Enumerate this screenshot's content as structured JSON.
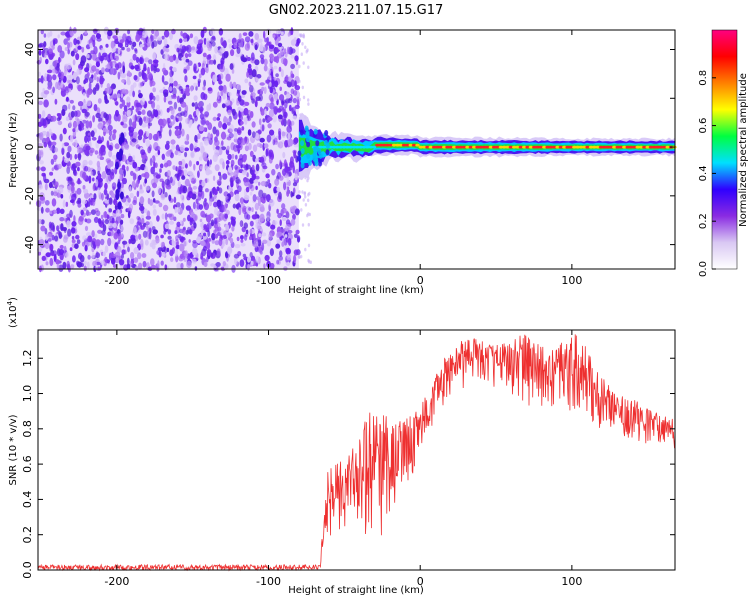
{
  "title": "GN02.2023.211.07.15.G17",
  "chart_data": [
    {
      "type": "heatmap",
      "name": "spectrogram",
      "xlabel": "Height of straight line (km)",
      "ylabel": "Frequency (Hz)",
      "xlim": [
        -252,
        168
      ],
      "ylim": [
        -50,
        48
      ],
      "xticks": [
        -200,
        -100,
        0,
        100
      ],
      "xtick_labels": [
        "-200",
        "-100",
        "0",
        "100"
      ],
      "yticks": [
        -40,
        -20,
        0,
        20,
        40
      ],
      "ytick_labels": [
        "-40",
        "-20",
        "0",
        "20",
        "40"
      ],
      "noise_region_x": [
        -252,
        -80
      ],
      "signal_line_freq": 0,
      "signal_points": [
        {
          "x": -78,
          "half_width": 7
        },
        {
          "x": -60,
          "half_width": 3
        },
        {
          "x": -40,
          "half_width": 2.5
        },
        {
          "x": -10,
          "half_width": 2
        },
        {
          "x": 50,
          "half_width": 2
        },
        {
          "x": 100,
          "half_width": 1.8
        },
        {
          "x": 168,
          "half_width": 1.8
        }
      ],
      "colorbar": {
        "label": "Normalized spectral amplitude",
        "ticks": [
          0.0,
          0.2,
          0.4,
          0.6,
          0.8
        ],
        "tick_labels": [
          "0.0",
          "0.2",
          "0.4",
          "0.6",
          "0.8"
        ],
        "range": [
          0,
          1
        ],
        "colors": [
          "#ffffff",
          "#d9c8f3",
          "#8a2be2",
          "#2f00ff",
          "#00e0ff",
          "#00ff40",
          "#ffff00",
          "#ff8000",
          "#ff0000",
          "#ff0080"
        ]
      }
    },
    {
      "type": "line",
      "name": "snr",
      "xlabel": "Height of straight line (km)",
      "ylabel": "SNR (10 * v/v)",
      "scale_label": "(x10",
      "scale_exp": "4",
      "scale_close": ")",
      "xlim": [
        -252,
        168
      ],
      "ylim": [
        0,
        1.36
      ],
      "xticks": [
        -200,
        -100,
        0,
        100
      ],
      "xtick_labels": [
        "-200",
        "-100",
        "0",
        "100"
      ],
      "yticks": [
        0.0,
        0.2,
        0.4,
        0.6,
        0.8,
        1.0,
        1.2
      ],
      "ytick_labels": [
        "0.0",
        "0.2",
        "0.4",
        "0.6",
        "0.8",
        "1.0",
        "1.2"
      ],
      "color": "#ee3030",
      "envelope": {
        "x": [
          -252,
          -100,
          -66,
          -62,
          -55,
          -45,
          -35,
          -25,
          -15,
          -5,
          5,
          15,
          25,
          35,
          45,
          55,
          65,
          75,
          85,
          95,
          105,
          115,
          125,
          135,
          145,
          155,
          168
        ],
        "low": [
          0.0,
          0.0,
          0.0,
          0.15,
          0.2,
          0.15,
          0.1,
          0.2,
          0.35,
          0.5,
          0.75,
          0.9,
          1.0,
          1.05,
          1.05,
          1.0,
          0.95,
          0.9,
          0.9,
          0.88,
          0.85,
          0.8,
          0.78,
          0.75,
          0.72,
          0.7,
          0.68
        ],
        "high": [
          0.03,
          0.03,
          0.03,
          0.55,
          0.62,
          0.7,
          0.9,
          0.88,
          0.85,
          0.9,
          1.0,
          1.2,
          1.3,
          1.32,
          1.28,
          1.3,
          1.36,
          1.3,
          1.25,
          1.3,
          1.35,
          1.15,
          1.05,
          1.0,
          0.95,
          0.9,
          0.85
        ]
      }
    }
  ]
}
